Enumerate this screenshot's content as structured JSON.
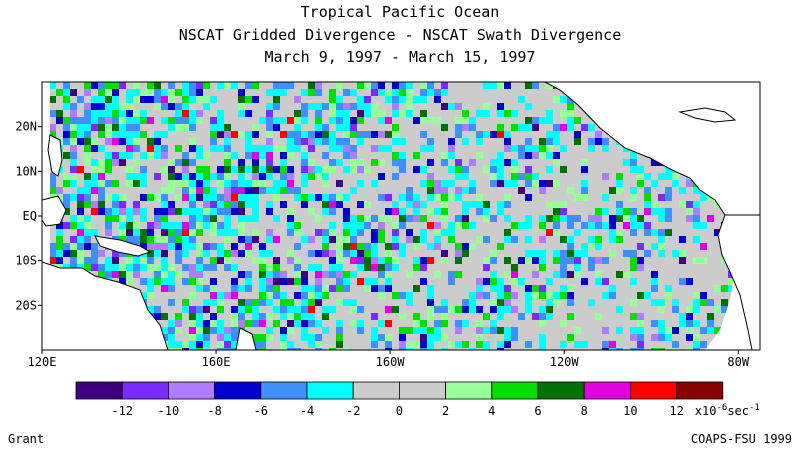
{
  "titles": {
    "line1": "Tropical Pacific Ocean",
    "line2": "NSCAT Gridded Divergence - NSCAT Swath Divergence",
    "line3": "March 9, 1997 - March 15, 1997"
  },
  "map": {
    "lon_range": [
      "120E",
      "285E"
    ],
    "lat_range": [
      -30,
      30
    ],
    "lon_ticks": [
      {
        "lon": 120,
        "label": "120E"
      },
      {
        "lon": 160,
        "label": "160E"
      },
      {
        "lon": 200,
        "label": "160W"
      },
      {
        "lon": 240,
        "label": "120W"
      },
      {
        "lon": 280,
        "label": "80W"
      }
    ],
    "lat_ticks": [
      {
        "lat": 20,
        "label": "20N"
      },
      {
        "lat": 10,
        "label": "10N"
      },
      {
        "lat": 0,
        "label": "EQ"
      },
      {
        "lat": -10,
        "label": "10S"
      },
      {
        "lat": -20,
        "label": "20S"
      }
    ]
  },
  "colorbar": {
    "colors": [
      "#3f0080",
      "#7b2bff",
      "#b07cff",
      "#0000cc",
      "#3f8fff",
      "#00ffff",
      "#cccccc",
      "#cccccc",
      "#99ff99",
      "#00e000",
      "#007000",
      "#e000e0",
      "#ff0000",
      "#8b0000"
    ],
    "labels": [
      "-12",
      "-10",
      "-8",
      "-6",
      "-4",
      "-2",
      "0",
      "2",
      "4",
      "6",
      "8",
      "10",
      "12"
    ],
    "units": "x10",
    "units_exp": "-6",
    "units_tail": "sec",
    "units_tail_exp": "-1"
  },
  "footer": {
    "left": "Grant",
    "right": "COAPS-FSU 1999"
  }
}
